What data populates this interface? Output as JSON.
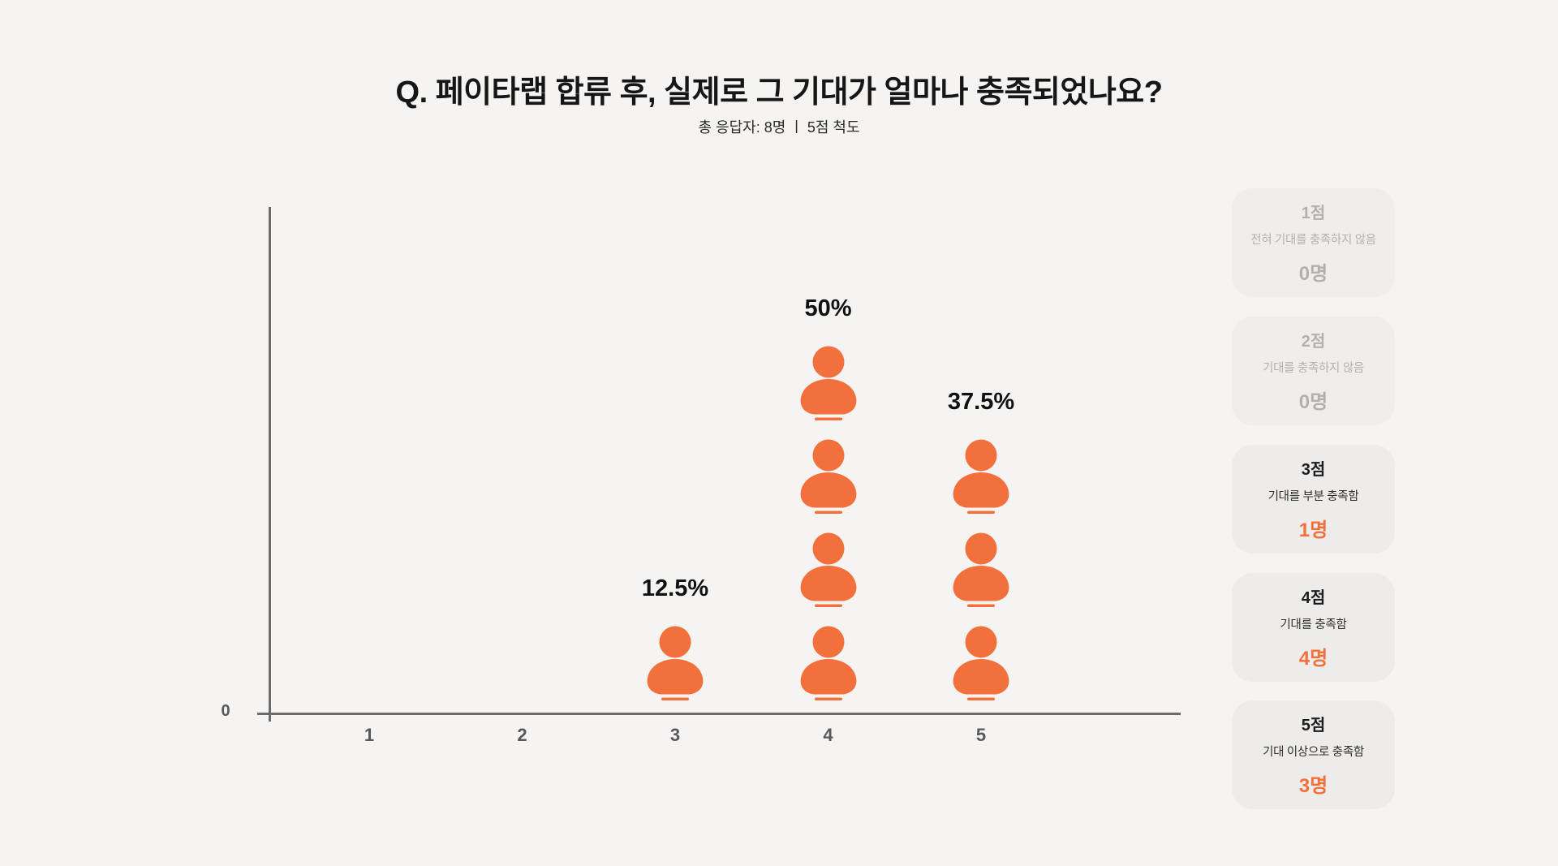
{
  "header": {
    "title": "Q. 페이타랩 합류 후, 실제로 그 기대가 얼마나 충족되었나요?",
    "subtitle": "총 응답자: 8명 ㅣ 5점 척도"
  },
  "chart_data": {
    "type": "bar",
    "subtype": "pictogram",
    "title": "Q. 페이타랩 합류 후, 실제로 그 기대가 얼마나 충족되었나요?",
    "subtitle": "총 응답자: 8명 ㅣ 5점 척도",
    "categories": [
      "1",
      "2",
      "3",
      "4",
      "5"
    ],
    "values": [
      0,
      0,
      1,
      4,
      3
    ],
    "percent_labels": [
      "",
      "",
      "12.5%",
      "50%",
      "37.5%"
    ],
    "total_respondents": 8,
    "scale": "5점 척도",
    "unit": "명",
    "y_origin_label": "0",
    "grid": false,
    "legend_position": "right",
    "icon": "person-icon"
  },
  "legend_cards": [
    {
      "score": "1점",
      "description": "전혀 기대를 충족하지 않음",
      "count": "0명",
      "active": false
    },
    {
      "score": "2점",
      "description": "기대를 충족하지 않음",
      "count": "0명",
      "active": false
    },
    {
      "score": "3점",
      "description": "기대를 부분 충족함",
      "count": "1명",
      "active": true
    },
    {
      "score": "4점",
      "description": "기대를 충족함",
      "count": "4명",
      "active": true
    },
    {
      "score": "5점",
      "description": "기대 이상으로 충족함",
      "count": "3명",
      "active": true
    }
  ],
  "colors": {
    "accent_orange": "#F2703B",
    "disabled_gray": "#B3B1AE",
    "card_bg": "#EDECEA",
    "page_bg": "#F5F4F2",
    "axis_gray": "#6B6B6B"
  }
}
